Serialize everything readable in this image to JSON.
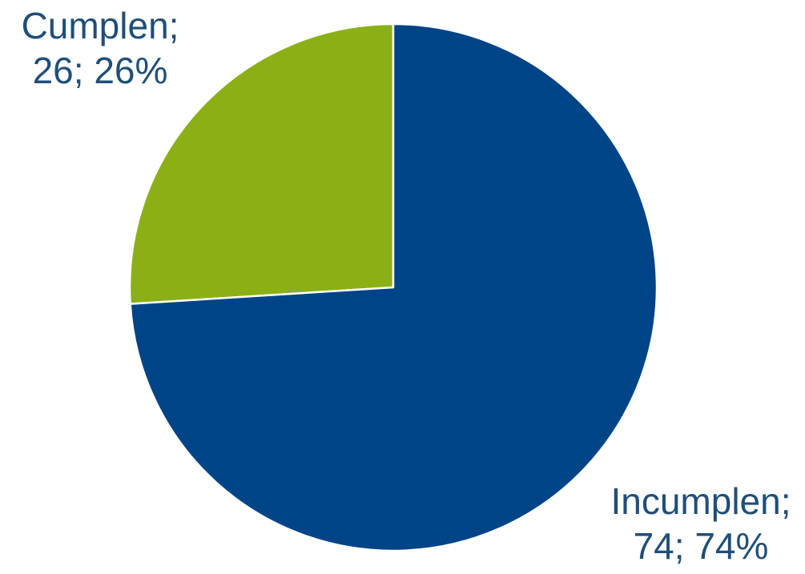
{
  "chart_data": {
    "type": "pie",
    "categories": [
      "Cumplen",
      "Incumplen"
    ],
    "values": [
      26,
      74
    ],
    "percentages": [
      "26%",
      "74%"
    ],
    "colors": [
      "#8bb015",
      "#004488"
    ],
    "slice_border_color": "#ffffff",
    "start_angle_deg": 0,
    "direction": "counter-clockwise",
    "legend": "none",
    "title": ""
  },
  "labels": {
    "cumplen": {
      "line1": "Cumplen;",
      "line2": "26; 26%"
    },
    "incumplen": {
      "line1": "Incumplen;",
      "line2": "74; 74%"
    }
  }
}
